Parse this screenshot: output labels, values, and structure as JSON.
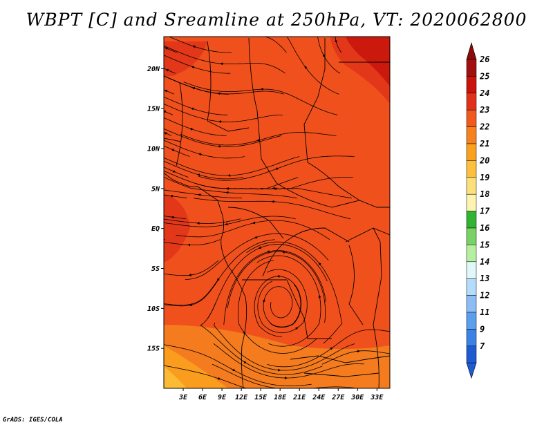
{
  "title": "WBPT [C] and Sreamline at 250hPa, VT: 2020062800",
  "footer": "GrADS: IGES/COLA",
  "map": {
    "lon_range": [
      0,
      35
    ],
    "lat_range": [
      -20,
      24
    ],
    "lat_ticks": [
      {
        "value": 20,
        "label": "20N"
      },
      {
        "value": 15,
        "label": "15N"
      },
      {
        "value": 10,
        "label": "10N"
      },
      {
        "value": 5,
        "label": "5N"
      },
      {
        "value": 0,
        "label": "EQ"
      },
      {
        "value": -5,
        "label": "5S"
      },
      {
        "value": -10,
        "label": "10S"
      },
      {
        "value": -15,
        "label": "15S"
      }
    ],
    "lon_ticks": [
      {
        "value": 3,
        "label": "3E"
      },
      {
        "value": 6,
        "label": "6E"
      },
      {
        "value": 9,
        "label": "9E"
      },
      {
        "value": 12,
        "label": "12E"
      },
      {
        "value": 15,
        "label": "15E"
      },
      {
        "value": 18,
        "label": "18E"
      },
      {
        "value": 21,
        "label": "21E"
      },
      {
        "value": 24,
        "label": "24E"
      },
      {
        "value": 27,
        "label": "27E"
      },
      {
        "value": 30,
        "label": "30E"
      },
      {
        "value": 33,
        "label": "33E"
      }
    ],
    "background_color": "#f0501c"
  },
  "colorbar": {
    "levels": [
      {
        "label": "26",
        "color": "#a01010"
      },
      {
        "label": "25",
        "color": "#c8140c"
      },
      {
        "label": "24",
        "color": "#e0321a"
      },
      {
        "label": "23",
        "color": "#f05a1c"
      },
      {
        "label": "22",
        "color": "#f5821e"
      },
      {
        "label": "21",
        "color": "#faa21e"
      },
      {
        "label": "20",
        "color": "#fcc03c"
      },
      {
        "label": "19",
        "color": "#fce07c"
      },
      {
        "label": "18",
        "color": "#fcf4b0"
      },
      {
        "label": "17",
        "color": "#32b432"
      },
      {
        "label": "16",
        "color": "#78d264"
      },
      {
        "label": "15",
        "color": "#b4f0a0"
      },
      {
        "label": "14",
        "color": "#e0f8f8"
      },
      {
        "label": "13",
        "color": "#b4dcfc"
      },
      {
        "label": "12",
        "color": "#8cbef5"
      },
      {
        "label": "11",
        "color": "#5a9eee"
      },
      {
        "label": "9",
        "color": "#3c82e6"
      },
      {
        "label": "7",
        "color": "#1e5ad2"
      }
    ],
    "top_arrow_color": "#8c0a0a",
    "bottom_arrow_color": "#1e5ad2"
  }
}
